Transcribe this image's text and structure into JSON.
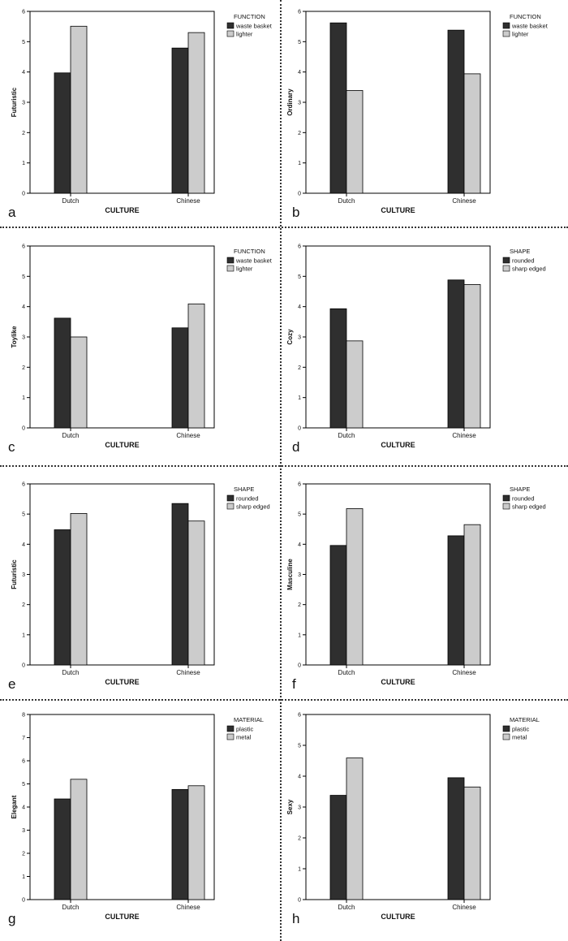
{
  "figure": {
    "xlabel": "CULTURE",
    "categories": [
      "Dutch",
      "Chinese"
    ],
    "colors": {
      "first": "#2f2f2f",
      "second": "#cccccc"
    }
  },
  "chart_data": [
    {
      "type": "bar",
      "panel": "a",
      "ylabel": "Futuristic",
      "xlabel": "CULTURE",
      "categories": [
        "Dutch",
        "Chinese"
      ],
      "ylim": [
        0,
        6
      ],
      "yticks": [
        0,
        1,
        2,
        3,
        4,
        5,
        6
      ],
      "legend_title": "FUNCTION",
      "legend": "top-right",
      "series": [
        {
          "name": "waste basket",
          "values": [
            3.97,
            4.79
          ]
        },
        {
          "name": "lighter",
          "values": [
            5.51,
            5.3
          ]
        }
      ]
    },
    {
      "type": "bar",
      "panel": "b",
      "ylabel": "Ordinary",
      "xlabel": "CULTURE",
      "categories": [
        "Dutch",
        "Chinese"
      ],
      "ylim": [
        0,
        6
      ],
      "yticks": [
        0,
        1,
        2,
        3,
        4,
        5,
        6
      ],
      "legend_title": "FUNCTION",
      "legend": "top-right",
      "series": [
        {
          "name": "waste basket",
          "values": [
            5.62,
            5.38
          ]
        },
        {
          "name": "lighter",
          "values": [
            3.39,
            3.94
          ]
        }
      ]
    },
    {
      "type": "bar",
      "panel": "c",
      "ylabel": "Toylike",
      "xlabel": "CULTURE",
      "categories": [
        "Dutch",
        "Chinese"
      ],
      "ylim": [
        0,
        6
      ],
      "yticks": [
        0,
        1,
        2,
        3,
        4,
        5,
        6
      ],
      "legend_title": "FUNCTION",
      "legend": "top-right",
      "series": [
        {
          "name": "waste basket",
          "values": [
            3.62,
            3.3
          ]
        },
        {
          "name": "lighter",
          "values": [
            3.0,
            4.09
          ]
        }
      ]
    },
    {
      "type": "bar",
      "panel": "d",
      "ylabel": "Cozy",
      "xlabel": "CULTURE",
      "categories": [
        "Dutch",
        "Chinese"
      ],
      "ylim": [
        0,
        6
      ],
      "yticks": [
        0,
        1,
        2,
        3,
        4,
        5,
        6
      ],
      "legend_title": "SHAPE",
      "legend": "top-right",
      "series": [
        {
          "name": "rounded",
          "values": [
            3.93,
            4.88
          ]
        },
        {
          "name": "sharp edged",
          "values": [
            2.87,
            4.73
          ]
        }
      ]
    },
    {
      "type": "bar",
      "panel": "e",
      "ylabel": "Futuristic",
      "xlabel": "CULTURE",
      "categories": [
        "Dutch",
        "Chinese"
      ],
      "ylim": [
        0,
        6
      ],
      "yticks": [
        0,
        1,
        2,
        3,
        4,
        5,
        6
      ],
      "legend_title": "SHAPE",
      "legend": "top-right",
      "series": [
        {
          "name": "rounded",
          "values": [
            4.48,
            5.35
          ]
        },
        {
          "name": "sharp edged",
          "values": [
            5.02,
            4.77
          ]
        }
      ]
    },
    {
      "type": "bar",
      "panel": "f",
      "ylabel": "Masculine",
      "xlabel": "CULTURE",
      "categories": [
        "Dutch",
        "Chinese"
      ],
      "ylim": [
        0,
        6
      ],
      "yticks": [
        0,
        1,
        2,
        3,
        4,
        5,
        6
      ],
      "legend_title": "SHAPE",
      "legend": "top-right",
      "series": [
        {
          "name": "rounded",
          "values": [
            3.96,
            4.28
          ]
        },
        {
          "name": "sharp edged",
          "values": [
            5.18,
            4.65
          ]
        }
      ]
    },
    {
      "type": "bar",
      "panel": "g",
      "ylabel": "Elegant",
      "xlabel": "CULTURE",
      "categories": [
        "Dutch",
        "Chinese"
      ],
      "ylim": [
        0,
        8
      ],
      "yticks": [
        0,
        1,
        2,
        3,
        4,
        5,
        6,
        7,
        8
      ],
      "legend_title": "MATERIAL",
      "legend": "top-right",
      "series": [
        {
          "name": "plastic",
          "values": [
            4.35,
            4.76
          ]
        },
        {
          "name": "metal",
          "values": [
            5.2,
            4.92
          ]
        }
      ]
    },
    {
      "type": "bar",
      "panel": "h",
      "ylabel": "Sexy",
      "xlabel": "CULTURE",
      "categories": [
        "Dutch",
        "Chinese"
      ],
      "ylim": [
        0,
        6
      ],
      "yticks": [
        0,
        1,
        2,
        3,
        4,
        5,
        6
      ],
      "legend_title": "MATERIAL",
      "legend": "top-right",
      "series": [
        {
          "name": "plastic",
          "values": [
            3.38,
            3.95
          ]
        },
        {
          "name": "metal",
          "values": [
            4.59,
            3.65
          ]
        }
      ]
    }
  ]
}
